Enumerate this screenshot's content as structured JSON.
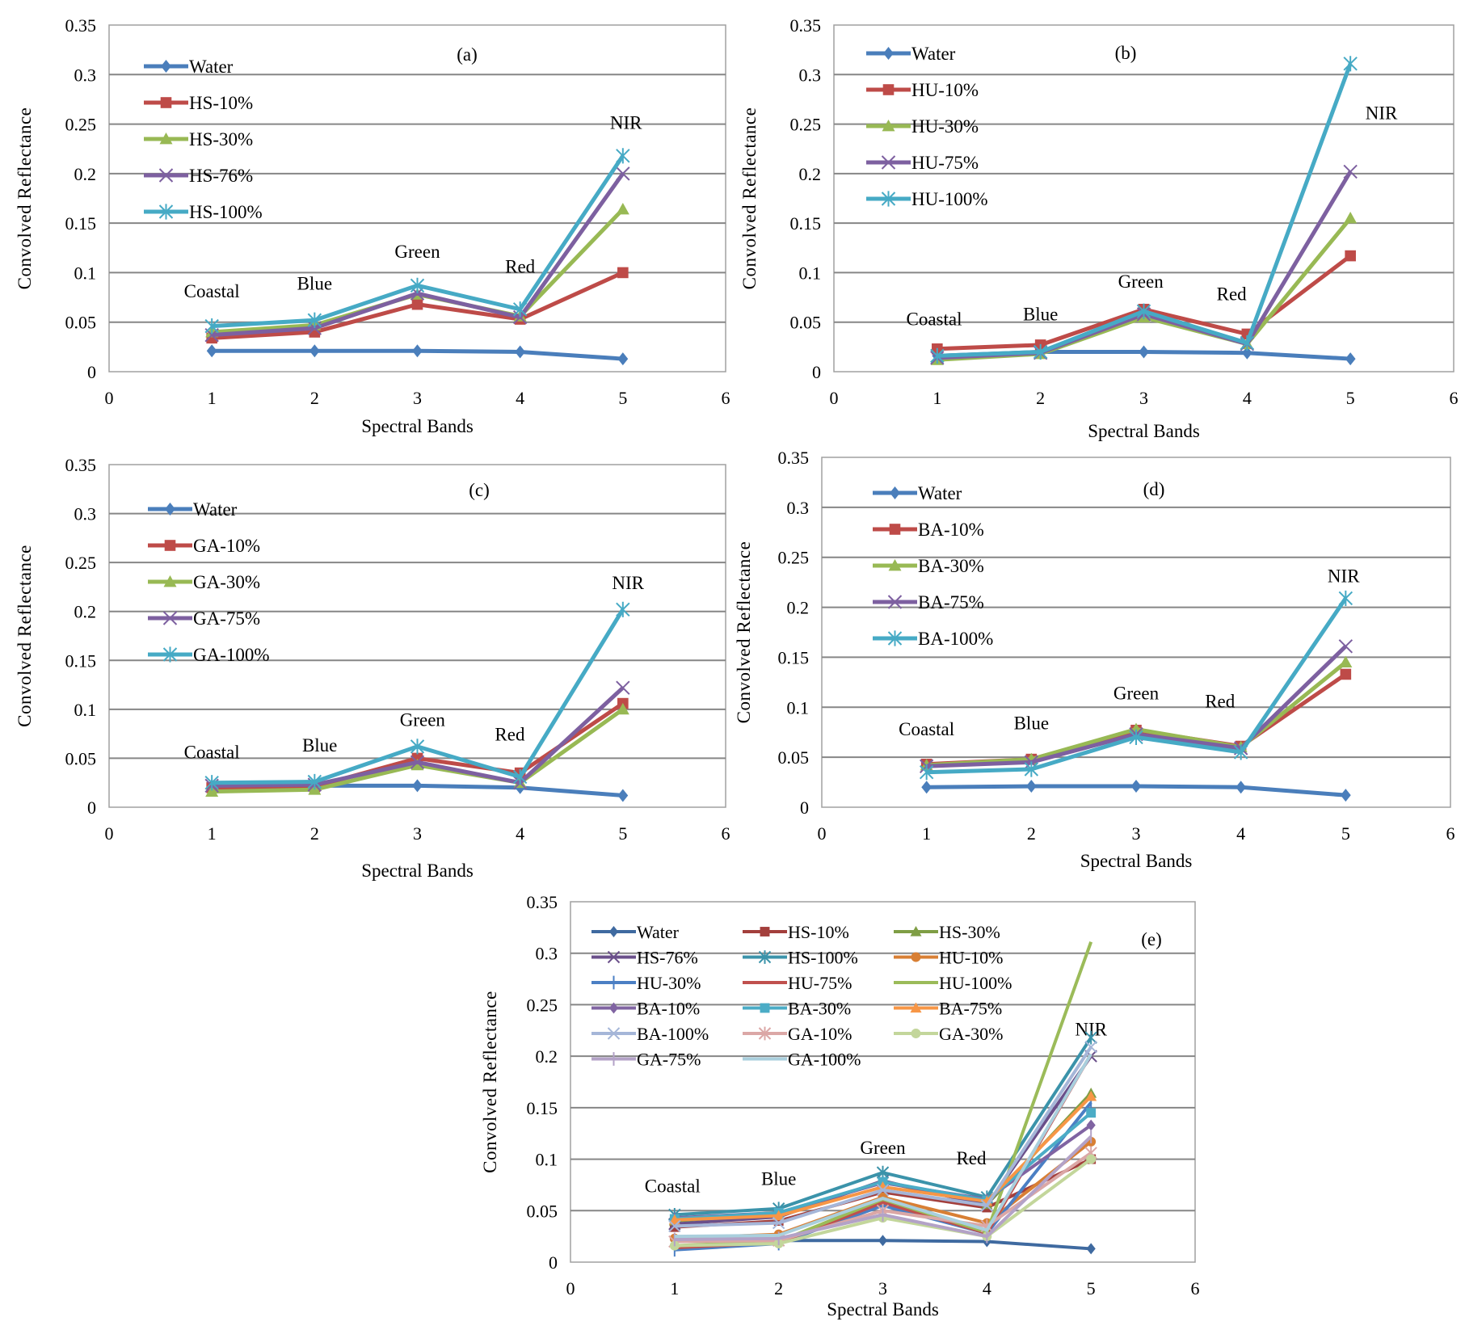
{
  "chart_data": [
    {
      "type": "line",
      "panel_label": "(a)",
      "xlabel": "Spectral Bands",
      "ylabel": "Convolved Reflectance",
      "xlim": [
        0,
        6
      ],
      "ylim": [
        0,
        0.35
      ],
      "xticks": [
        "0",
        "1",
        "2",
        "3",
        "4",
        "5",
        "6"
      ],
      "yticks": [
        "0",
        "0.05",
        "0.1",
        "0.15",
        "0.2",
        "0.25",
        "0.3",
        "0.35"
      ],
      "grid": "horizontal",
      "legend_position": "top-left",
      "x": [
        1,
        2,
        3,
        4,
        5
      ],
      "band_annotations": [
        {
          "text": "Coastal",
          "x": 1,
          "y": 0.075
        },
        {
          "text": "Blue",
          "x": 2,
          "y": 0.083
        },
        {
          "text": "Green",
          "x": 3,
          "y": 0.115
        },
        {
          "text": "Red",
          "x": 4,
          "y": 0.1
        },
        {
          "text": "NIR",
          "x": 5.03,
          "y": 0.245
        }
      ],
      "series": [
        {
          "name": "Water",
          "color": "#4a7ebb",
          "marker": "diamond",
          "values": [
            0.021,
            0.021,
            0.021,
            0.02,
            0.013
          ]
        },
        {
          "name": "HS-10%",
          "color": "#be4b48",
          "marker": "square",
          "values": [
            0.034,
            0.04,
            0.068,
            0.053,
            0.1
          ]
        },
        {
          "name": "HS-30%",
          "color": "#98b954",
          "marker": "triangle",
          "values": [
            0.04,
            0.047,
            0.078,
            0.056,
            0.164
          ]
        },
        {
          "name": "HS-76%",
          "color": "#7d60a0",
          "marker": "x",
          "values": [
            0.037,
            0.044,
            0.079,
            0.055,
            0.2
          ]
        },
        {
          "name": "HS-100%",
          "color": "#46aac5",
          "marker": "star",
          "values": [
            0.046,
            0.052,
            0.087,
            0.063,
            0.218
          ]
        }
      ]
    },
    {
      "type": "line",
      "panel_label": "(b)",
      "xlabel": "Spectral Bands",
      "ylabel": "Convolved Reflectance",
      "xlim": [
        0,
        6
      ],
      "ylim": [
        0,
        0.35
      ],
      "xticks": [
        "0",
        "1",
        "2",
        "3",
        "4",
        "5",
        "6"
      ],
      "yticks": [
        "0",
        "0.05",
        "0.1",
        "0.15",
        "0.2",
        "0.25",
        "0.3",
        "0.35"
      ],
      "grid": "horizontal",
      "legend_position": "top-left",
      "x": [
        1,
        2,
        3,
        4,
        5
      ],
      "band_annotations": [
        {
          "text": "Coastal",
          "x": 0.97,
          "y": 0.047
        },
        {
          "text": "Blue",
          "x": 2.0,
          "y": 0.052
        },
        {
          "text": "Green",
          "x": 2.97,
          "y": 0.085
        },
        {
          "text": "Red",
          "x": 3.85,
          "y": 0.072
        },
        {
          "text": "NIR",
          "x": 5.3,
          "y": 0.255
        }
      ],
      "series": [
        {
          "name": "Water",
          "color": "#4a7ebb",
          "marker": "diamond",
          "values": [
            0.016,
            0.02,
            0.02,
            0.019,
            0.013
          ]
        },
        {
          "name": "HU-10%",
          "color": "#be4b48",
          "marker": "square",
          "values": [
            0.023,
            0.027,
            0.063,
            0.038,
            0.117
          ]
        },
        {
          "name": "HU-30%",
          "color": "#98b954",
          "marker": "triangle",
          "values": [
            0.012,
            0.018,
            0.055,
            0.028,
            0.155
          ]
        },
        {
          "name": "HU-75%",
          "color": "#7d60a0",
          "marker": "x",
          "values": [
            0.014,
            0.019,
            0.058,
            0.028,
            0.202
          ]
        },
        {
          "name": "HU-100%",
          "color": "#46aac5",
          "marker": "star",
          "values": [
            0.016,
            0.02,
            0.061,
            0.029,
            0.311
          ]
        }
      ]
    },
    {
      "type": "line",
      "panel_label": "(c)",
      "xlabel": "Spectral Bands",
      "ylabel": "Convolved Reflectance",
      "xlim": [
        0,
        6
      ],
      "ylim": [
        0,
        0.35
      ],
      "xticks": [
        "0",
        "1",
        "2",
        "3",
        "4",
        "5",
        "6"
      ],
      "yticks": [
        "0",
        "0.05",
        "0.1",
        "0.15",
        "0.2",
        "0.25",
        "0.3",
        "0.35"
      ],
      "grid": "horizontal",
      "legend_position": "top-left",
      "x": [
        1,
        2,
        3,
        4,
        5
      ],
      "band_annotations": [
        {
          "text": "Coastal",
          "x": 1.0,
          "y": 0.05
        },
        {
          "text": "Blue",
          "x": 2.05,
          "y": 0.057
        },
        {
          "text": "Green",
          "x": 3.05,
          "y": 0.083
        },
        {
          "text": "Red",
          "x": 3.9,
          "y": 0.068
        },
        {
          "text": "NIR",
          "x": 5.05,
          "y": 0.223
        }
      ],
      "series": [
        {
          "name": "Water",
          "color": "#4a7ebb",
          "marker": "diamond",
          "values": [
            0.022,
            0.022,
            0.022,
            0.02,
            0.012
          ]
        },
        {
          "name": "GA-10%",
          "color": "#be4b48",
          "marker": "square",
          "values": [
            0.02,
            0.021,
            0.05,
            0.035,
            0.106
          ]
        },
        {
          "name": "GA-30%",
          "color": "#98b954",
          "marker": "triangle",
          "values": [
            0.016,
            0.018,
            0.043,
            0.025,
            0.1
          ]
        },
        {
          "name": "GA-75%",
          "color": "#7d60a0",
          "marker": "x",
          "values": [
            0.022,
            0.023,
            0.046,
            0.025,
            0.122
          ]
        },
        {
          "name": "GA-100%",
          "color": "#46aac5",
          "marker": "star",
          "values": [
            0.025,
            0.026,
            0.062,
            0.031,
            0.202
          ]
        }
      ]
    },
    {
      "type": "line",
      "panel_label": "(d)",
      "xlabel": "Spectral Bands",
      "ylabel": "Convolved Reflectance",
      "xlim": [
        0,
        6
      ],
      "ylim": [
        0,
        0.35
      ],
      "xticks": [
        "0",
        "1",
        "2",
        "3",
        "4",
        "5",
        "6"
      ],
      "yticks": [
        "0",
        "0.05",
        "0.1",
        "0.15",
        "0.2",
        "0.25",
        "0.3",
        "0.35"
      ],
      "grid": "horizontal",
      "legend_position": "top-left",
      "x": [
        1,
        2,
        3,
        4,
        5
      ],
      "band_annotations": [
        {
          "text": "Coastal",
          "x": 1.0,
          "y": 0.072
        },
        {
          "text": "Blue",
          "x": 2.0,
          "y": 0.078
        },
        {
          "text": "Green",
          "x": 3.0,
          "y": 0.108
        },
        {
          "text": "Red",
          "x": 3.8,
          "y": 0.1
        },
        {
          "text": "NIR",
          "x": 4.98,
          "y": 0.225
        }
      ],
      "series": [
        {
          "name": "Water",
          "color": "#4a7ebb",
          "marker": "diamond",
          "values": [
            0.02,
            0.021,
            0.021,
            0.02,
            0.012
          ]
        },
        {
          "name": "BA-10%",
          "color": "#be4b48",
          "marker": "square",
          "values": [
            0.043,
            0.048,
            0.077,
            0.061,
            0.133
          ]
        },
        {
          "name": "BA-30%",
          "color": "#98b954",
          "marker": "triangle",
          "values": [
            0.042,
            0.048,
            0.078,
            0.06,
            0.145
          ]
        },
        {
          "name": "BA-75%",
          "color": "#7d60a0",
          "marker": "x",
          "values": [
            0.041,
            0.045,
            0.073,
            0.059,
            0.161
          ]
        },
        {
          "name": "BA-100%",
          "color": "#46aac5",
          "marker": "star",
          "values": [
            0.035,
            0.038,
            0.07,
            0.055,
            0.209
          ]
        }
      ]
    },
    {
      "type": "line",
      "panel_label": "(e)",
      "xlabel": "Spectral Bands",
      "ylabel": "Convolved Reflectance",
      "xlim": [
        0,
        6
      ],
      "ylim": [
        0,
        0.35
      ],
      "xticks": [
        "0",
        "1",
        "2",
        "3",
        "4",
        "5",
        "6"
      ],
      "yticks": [
        "0",
        "0.05",
        "0.1",
        "0.15",
        "0.2",
        "0.25",
        "0.3",
        "0.35"
      ],
      "grid": "horizontal",
      "legend_position": "top-left",
      "x": [
        1,
        2,
        3,
        4,
        5
      ],
      "band_annotations": [
        {
          "text": "Coastal",
          "x": 0.98,
          "y": 0.068
        },
        {
          "text": "Blue",
          "x": 2.0,
          "y": 0.075
        },
        {
          "text": "Green",
          "x": 3.0,
          "y": 0.105
        },
        {
          "text": "Red",
          "x": 3.85,
          "y": 0.095
        },
        {
          "text": "NIR",
          "x": 5.0,
          "y": 0.22
        }
      ],
      "series": [
        {
          "name": "Water",
          "color": "#3f6aa0",
          "marker": "diamond",
          "values": [
            0.021,
            0.021,
            0.021,
            0.02,
            0.013
          ]
        },
        {
          "name": "HS-10%",
          "color": "#a33f3c",
          "marker": "square",
          "values": [
            0.034,
            0.04,
            0.068,
            0.053,
            0.1
          ]
        },
        {
          "name": "HS-30%",
          "color": "#7f9e45",
          "marker": "triangle",
          "values": [
            0.04,
            0.047,
            0.078,
            0.056,
            0.164
          ]
        },
        {
          "name": "HS-76%",
          "color": "#6a4f8a",
          "marker": "x",
          "values": [
            0.037,
            0.044,
            0.079,
            0.055,
            0.2
          ]
        },
        {
          "name": "HS-100%",
          "color": "#3b93aa",
          "marker": "star",
          "values": [
            0.046,
            0.052,
            0.087,
            0.063,
            0.218
          ]
        },
        {
          "name": "HU-10%",
          "color": "#d87f34",
          "marker": "circle",
          "values": [
            0.023,
            0.027,
            0.063,
            0.038,
            0.117
          ]
        },
        {
          "name": "HU-30%",
          "color": "#4b7fc4",
          "marker": "plus",
          "values": [
            0.012,
            0.018,
            0.055,
            0.028,
            0.155
          ]
        },
        {
          "name": "HU-75%",
          "color": "#c0504d",
          "marker": "none",
          "values": [
            0.014,
            0.019,
            0.058,
            0.028,
            0.202
          ]
        },
        {
          "name": "HU-100%",
          "color": "#9bbb59",
          "marker": "none",
          "values": [
            0.016,
            0.02,
            0.061,
            0.029,
            0.311
          ]
        },
        {
          "name": "BA-10%",
          "color": "#8064a2",
          "marker": "diamond",
          "values": [
            0.043,
            0.048,
            0.077,
            0.061,
            0.133
          ]
        },
        {
          "name": "BA-30%",
          "color": "#4bacc6",
          "marker": "square",
          "values": [
            0.042,
            0.048,
            0.078,
            0.06,
            0.145
          ]
        },
        {
          "name": "BA-75%",
          "color": "#f79646",
          "marker": "triangle",
          "values": [
            0.041,
            0.045,
            0.073,
            0.059,
            0.161
          ]
        },
        {
          "name": "BA-100%",
          "color": "#a5b6d8",
          "marker": "x",
          "values": [
            0.035,
            0.038,
            0.07,
            0.055,
            0.209
          ]
        },
        {
          "name": "GA-10%",
          "color": "#dba7a6",
          "marker": "star",
          "values": [
            0.02,
            0.021,
            0.05,
            0.035,
            0.106
          ]
        },
        {
          "name": "GA-30%",
          "color": "#c3d69b",
          "marker": "circle",
          "values": [
            0.016,
            0.018,
            0.043,
            0.025,
            0.1
          ]
        },
        {
          "name": "GA-75%",
          "color": "#b3a2c7",
          "marker": "plus",
          "values": [
            0.022,
            0.023,
            0.046,
            0.025,
            0.122
          ]
        },
        {
          "name": "GA-100%",
          "color": "#a9cfdd",
          "marker": "none",
          "values": [
            0.025,
            0.026,
            0.062,
            0.031,
            0.202
          ]
        }
      ]
    }
  ]
}
